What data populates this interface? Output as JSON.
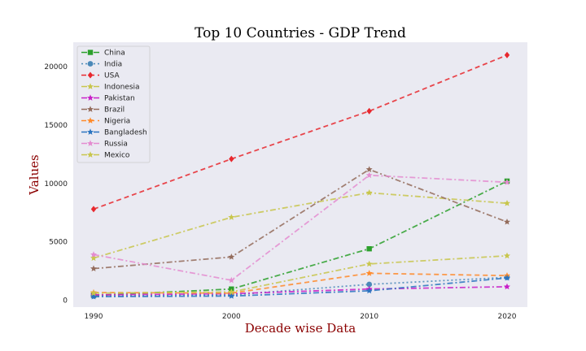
{
  "chart_data": {
    "type": "line",
    "title": "Top 10 Countries - GDP Trend",
    "xlabel": "Decade wise Data",
    "ylabel": "Values",
    "x": [
      1990,
      2000,
      2010,
      2020
    ],
    "xticks": [
      "1990",
      "2000",
      "2010",
      "2020"
    ],
    "ylim": [
      -600,
      22100
    ],
    "yticks": [
      0,
      5000,
      10000,
      15000,
      20000
    ],
    "ytick_labels": [
      "0",
      "5000",
      "10000",
      "15000",
      "20000"
    ],
    "grid": false,
    "legend_position": "top-left",
    "background": "#eaeaf2",
    "series": [
      {
        "name": "China",
        "values": [
          400,
          950,
          4400,
          10200
        ],
        "color": "#2ca02c",
        "dash": "7,3,2,3",
        "marker": "square"
      },
      {
        "name": "India",
        "values": [
          350,
          450,
          1350,
          1950
        ],
        "color": "#4a88b8",
        "dash": "2,3",
        "marker": "circle"
      },
      {
        "name": "USA",
        "values": [
          7800,
          12100,
          16200,
          21000
        ],
        "color": "#e8282e",
        "dash": "6,4",
        "marker": "diamond"
      },
      {
        "name": "Indonesia",
        "values": [
          3600,
          7100,
          9200,
          8300
        ],
        "color": "#c8c64c",
        "dash": "7,3,2,3",
        "marker": "star"
      },
      {
        "name": "Pakistan",
        "values": [
          450,
          550,
          950,
          1150
        ],
        "color": "#c81fc8",
        "dash": "7,3,2,3",
        "marker": "star"
      },
      {
        "name": "Brazil",
        "values": [
          2700,
          3700,
          11200,
          6700
        ],
        "color": "#946c5c",
        "dash": "7,3,2,3",
        "marker": "star"
      },
      {
        "name": "Nigeria",
        "values": [
          650,
          600,
          2300,
          2100
        ],
        "color": "#ff8a2a",
        "dash": "6,4",
        "marker": "star"
      },
      {
        "name": "Bangladesh",
        "values": [
          300,
          350,
          800,
          1900
        ],
        "color": "#2a74c0",
        "dash": "7,3,2,3",
        "marker": "star"
      },
      {
        "name": "Russia",
        "values": [
          3900,
          1700,
          10700,
          10100
        ],
        "color": "#e48cd0",
        "dash": "7,3,2,3",
        "marker": "star"
      },
      {
        "name": "Mexico",
        "values": [
          600,
          700,
          3100,
          3800
        ],
        "color": "#c8c64c",
        "dash": "7,3,2,3",
        "marker": "star"
      }
    ]
  }
}
